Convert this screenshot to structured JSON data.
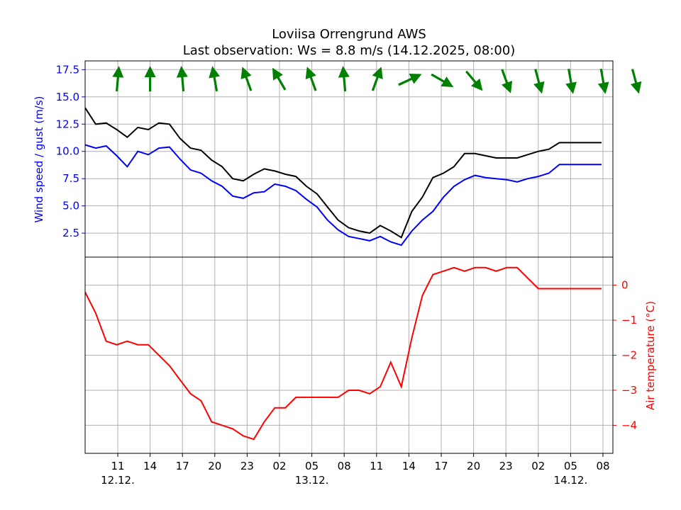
{
  "title_line1": "Loviisa Orrengrund AWS",
  "title_line2": "Last observation: Ws = 8.8 m/s (14.12.2025, 08:00)",
  "colors": {
    "wind_speed": "#0000ff",
    "gust": "#000000",
    "temperature": "#ff0000",
    "arrows": "#008000",
    "grid": "#b0b0b0"
  },
  "chart_data": [
    {
      "type": "line",
      "title": "Loviisa Orrengrund AWS",
      "ylabel": "Wind speed / gust (m/s)",
      "ylim": [
        0.3,
        18.3
      ],
      "yticks": [
        "2.5",
        "5.0",
        "7.5",
        "10.0",
        "12.5",
        "15.0",
        "17.5"
      ],
      "grid": true,
      "series": [
        {
          "key": "wind_speed",
          "x_hours": [
            0,
            1,
            2,
            3,
            4,
            5,
            6,
            7,
            8,
            9,
            10,
            11,
            12,
            13,
            14,
            15,
            16,
            17,
            18,
            19,
            20,
            21,
            22,
            23,
            24,
            25,
            26,
            27,
            28,
            29,
            30,
            31,
            32,
            33,
            34,
            35,
            36,
            37,
            38,
            39,
            40,
            41,
            42,
            43,
            44,
            45,
            46,
            47,
            48,
            49
          ],
          "values": [
            10.6,
            10.3,
            10.5,
            9.6,
            8.6,
            10.0,
            9.7,
            10.3,
            10.4,
            9.3,
            8.3,
            8.0,
            7.3,
            6.8,
            5.9,
            5.7,
            6.2,
            6.3,
            7.0,
            6.8,
            6.4,
            5.6,
            4.9,
            3.7,
            2.8,
            2.2,
            2.0,
            1.8,
            2.2,
            1.7,
            1.4,
            2.7,
            3.7,
            4.5,
            5.8,
            6.8,
            7.4,
            7.8,
            7.6,
            7.5,
            7.4,
            7.2,
            7.5,
            7.7,
            8.0,
            8.8,
            8.8,
            8.8,
            8.8,
            8.8
          ]
        },
        {
          "key": "gust",
          "x_hours": [
            0,
            1,
            2,
            3,
            4,
            5,
            6,
            7,
            8,
            9,
            10,
            11,
            12,
            13,
            14,
            15,
            16,
            17,
            18,
            19,
            20,
            21,
            22,
            23,
            24,
            25,
            26,
            27,
            28,
            29,
            30,
            31,
            32,
            33,
            34,
            35,
            36,
            37,
            38,
            39,
            40,
            41,
            42,
            43,
            44,
            45,
            46,
            47,
            48,
            49
          ],
          "values": [
            14.0,
            12.5,
            12.6,
            12.0,
            11.3,
            12.2,
            12.0,
            12.6,
            12.5,
            11.2,
            10.3,
            10.1,
            9.2,
            8.6,
            7.5,
            7.3,
            7.9,
            8.4,
            8.2,
            7.9,
            7.7,
            6.8,
            6.1,
            4.9,
            3.7,
            3.0,
            2.7,
            2.5,
            3.2,
            2.7,
            2.1,
            4.5,
            5.8,
            7.6,
            8.0,
            8.6,
            9.8,
            9.8,
            9.6,
            9.4,
            9.4,
            9.4,
            9.7,
            10.0,
            10.2,
            10.8,
            10.8,
            10.8,
            10.8,
            10.8
          ]
        }
      ],
      "wind_direction_deg": [
        185,
        180,
        175,
        170,
        160,
        150,
        160,
        175,
        200,
        245,
        300,
        320,
        340,
        345,
        350,
        350,
        345
      ],
      "x_range_hours": [
        0,
        49
      ],
      "xticks": [
        "11",
        "14",
        "17",
        "20",
        "23",
        "02",
        "05",
        "08",
        "11",
        "14",
        "17",
        "20",
        "23",
        "02",
        "05",
        "08"
      ],
      "date_labels": [
        "12.12.",
        "13.12.",
        "14.12."
      ]
    },
    {
      "type": "line",
      "ylabel": "Air temperature (°C)",
      "ylim": [
        -4.8,
        0.8
      ],
      "yticks": [
        "0",
        "−1",
        "−2",
        "−3",
        "−4"
      ],
      "grid": true,
      "series": [
        {
          "key": "temperature",
          "x_hours": [
            0,
            1,
            2,
            3,
            4,
            5,
            6,
            7,
            8,
            9,
            10,
            11,
            12,
            13,
            14,
            15,
            16,
            17,
            18,
            19,
            20,
            21,
            22,
            23,
            24,
            25,
            26,
            27,
            28,
            29,
            30,
            31,
            32,
            33,
            34,
            35,
            36,
            37,
            38,
            39,
            40,
            41,
            42,
            43,
            44,
            45,
            46,
            47,
            48,
            49
          ],
          "values": [
            -0.2,
            -0.8,
            -1.6,
            -1.7,
            -1.6,
            -1.7,
            -1.7,
            -2.0,
            -2.3,
            -2.7,
            -3.1,
            -3.3,
            -3.9,
            -4.0,
            -4.1,
            -4.3,
            -4.4,
            -3.9,
            -3.5,
            -3.5,
            -3.2,
            -3.2,
            -3.2,
            -3.2,
            -3.2,
            -3.0,
            -3.0,
            -3.1,
            -2.9,
            -2.2,
            -2.9,
            -1.5,
            -0.3,
            0.3,
            0.4,
            0.5,
            0.4,
            0.5,
            0.5,
            0.4,
            0.5,
            0.5,
            0.2,
            -0.1,
            -0.1,
            -0.1,
            -0.1,
            -0.1,
            -0.1,
            -0.1
          ]
        }
      ]
    }
  ]
}
